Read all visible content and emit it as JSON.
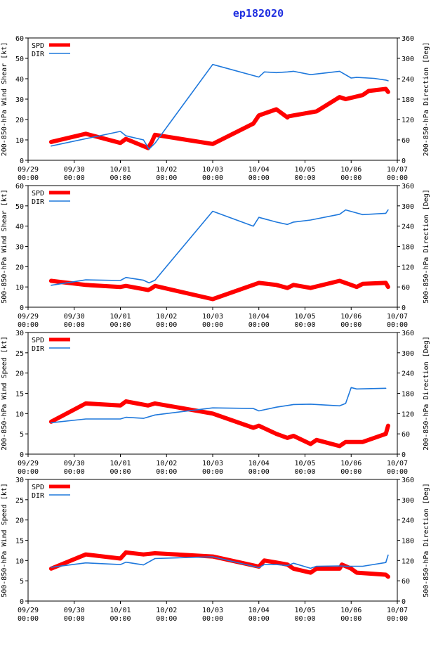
{
  "title": "ep182020",
  "colors": {
    "spd": "#ff0000",
    "dir": "#1e78dc",
    "title": "#1f2fe0"
  },
  "x_ticks": [
    {
      "date": "09/29",
      "time": "00:00",
      "t": 0
    },
    {
      "date": "09/30",
      "time": "00:00",
      "t": 1
    },
    {
      "date": "10/01",
      "time": "00:00",
      "t": 2
    },
    {
      "date": "10/02",
      "time": "00:00",
      "t": 3
    },
    {
      "date": "10/03",
      "time": "00:00",
      "t": 4
    },
    {
      "date": "10/04",
      "time": "00:00",
      "t": 5
    },
    {
      "date": "10/05",
      "time": "00:00",
      "t": 6
    },
    {
      "date": "10/06",
      "time": "00:00",
      "t": 7
    },
    {
      "date": "10/07",
      "time": "00:00",
      "t": 8
    }
  ],
  "chart_data": [
    {
      "type": "line",
      "ylabel_left": "200-850-hPa Wind Shear [kt]",
      "ylabel_right": "200-850-hPa Direction [Deg]",
      "ylim_left": [
        0,
        60
      ],
      "yticks_left": [
        0,
        10,
        20,
        30,
        40,
        50,
        60
      ],
      "ylim_right": [
        0,
        360
      ],
      "yticks_right": [
        0,
        60,
        120,
        180,
        240,
        300,
        360
      ],
      "xlim": [
        0,
        8
      ],
      "legend": [
        "SPD",
        "DIR"
      ],
      "series": [
        {
          "name": "SPD",
          "axis": "left",
          "x": [
            0.5,
            1.25,
            2.0,
            2.12,
            2.6,
            2.68,
            2.75,
            4.0,
            4.88,
            5.0,
            5.38,
            5.62,
            5.63,
            5.75,
            6.25,
            6.75,
            6.88,
            7.25,
            7.38,
            7.75,
            7.8
          ],
          "values": [
            9,
            13,
            8.5,
            10.5,
            6,
            9,
            12.5,
            8,
            18,
            22,
            25,
            21,
            21.5,
            22,
            24,
            31,
            30,
            32,
            34,
            35,
            33.5
          ]
        },
        {
          "name": "DIR",
          "axis": "right",
          "x": [
            0.5,
            2.0,
            2.12,
            2.5,
            2.62,
            2.75,
            4.0,
            5.0,
            5.12,
            5.38,
            5.62,
            5.75,
            6.12,
            6.75,
            7.0,
            7.12,
            7.5,
            7.75,
            7.8
          ],
          "values": [
            42,
            85,
            72,
            60,
            33,
            50,
            282,
            245,
            260,
            258,
            260,
            262,
            252,
            262,
            242,
            244,
            241,
            236,
            234
          ]
        }
      ]
    },
    {
      "type": "line",
      "ylabel_left": "500-850-hPa Wind Shear [kt]",
      "ylabel_right": "500-850-hPa Direction [Deg]",
      "ylim_left": [
        0,
        60
      ],
      "yticks_left": [
        0,
        10,
        20,
        30,
        40,
        50,
        60
      ],
      "ylim_right": [
        0,
        360
      ],
      "yticks_right": [
        0,
        60,
        120,
        180,
        240,
        300,
        360
      ],
      "xlim": [
        0,
        8
      ],
      "legend": [
        "SPD",
        "DIR"
      ],
      "series": [
        {
          "name": "SPD",
          "axis": "left",
          "x": [
            0.5,
            1.25,
            2.0,
            2.12,
            2.6,
            2.65,
            2.75,
            4.0,
            5.0,
            5.38,
            5.62,
            5.75,
            6.12,
            6.75,
            7.0,
            7.12,
            7.25,
            7.75,
            7.8
          ],
          "values": [
            13,
            11,
            10,
            10.5,
            8.5,
            9,
            10.5,
            4,
            12,
            11,
            9.5,
            11,
            9.5,
            13,
            11,
            10,
            11.5,
            12,
            10
          ]
        },
        {
          "name": "DIR",
          "axis": "right",
          "x": [
            0.5,
            1.25,
            2.0,
            2.12,
            2.5,
            2.62,
            2.75,
            4.0,
            4.88,
            5.0,
            5.38,
            5.62,
            5.75,
            6.12,
            6.75,
            6.88,
            7.25,
            7.75,
            7.8
          ],
          "values": [
            65,
            81,
            79,
            88,
            80,
            72,
            80,
            284,
            240,
            266,
            252,
            245,
            252,
            258,
            275,
            288,
            274,
            278,
            288
          ]
        }
      ]
    },
    {
      "type": "line",
      "ylabel_left": "200-850-hPa Wind Speed [kt]",
      "ylabel_right": "200-850-hPa Direction [Deg]",
      "ylim_left": [
        0,
        30
      ],
      "yticks_left": [
        0,
        5,
        10,
        15,
        20,
        25,
        30
      ],
      "ylim_right": [
        0,
        360
      ],
      "yticks_right": [
        0,
        60,
        120,
        180,
        240,
        300,
        360
      ],
      "xlim": [
        0,
        8
      ],
      "legend": [
        "SPD",
        "DIR"
      ],
      "series": [
        {
          "name": "SPD",
          "axis": "left",
          "x": [
            0.5,
            1.25,
            2.0,
            2.12,
            2.6,
            2.75,
            4.0,
            4.88,
            5.0,
            5.38,
            5.62,
            5.75,
            6.12,
            6.25,
            6.75,
            6.88,
            7.25,
            7.75,
            7.8
          ],
          "values": [
            8,
            12.5,
            12,
            13,
            12,
            12.5,
            10,
            6.5,
            7,
            5,
            4,
            4.5,
            2.5,
            3.5,
            2,
            3,
            3,
            5,
            7
          ]
        },
        {
          "name": "DIR",
          "axis": "right",
          "x": [
            0.5,
            1.25,
            2.0,
            2.12,
            2.5,
            2.75,
            4.0,
            4.88,
            5.0,
            5.38,
            5.62,
            5.75,
            6.12,
            6.75,
            6.88,
            7.0,
            7.12,
            7.75
          ],
          "values": [
            93,
            104,
            104,
            109,
            106,
            116,
            137,
            135,
            128,
            139,
            144,
            147,
            148,
            143,
            150,
            197,
            193,
            195
          ]
        }
      ]
    },
    {
      "type": "line",
      "ylabel_left": "500-850-hPa Wind Speed [kt]",
      "ylabel_right": "500-850-hPa Direction [Deg]",
      "ylim_left": [
        0,
        30
      ],
      "yticks_left": [
        0,
        5,
        10,
        15,
        20,
        25,
        30
      ],
      "ylim_right": [
        0,
        360
      ],
      "yticks_right": [
        0,
        60,
        120,
        180,
        240,
        300,
        360
      ],
      "xlim": [
        0,
        8
      ],
      "legend": [
        "SPD",
        "DIR"
      ],
      "series": [
        {
          "name": "SPD",
          "axis": "left",
          "x": [
            0.5,
            1.25,
            2.0,
            2.12,
            2.5,
            2.75,
            4.0,
            5.0,
            5.12,
            5.38,
            5.62,
            5.75,
            6.12,
            6.25,
            6.75,
            6.8,
            7.0,
            7.12,
            7.75,
            7.8
          ],
          "values": [
            8,
            11.5,
            10.5,
            12,
            11.5,
            11.8,
            11,
            8.5,
            10,
            9.5,
            9,
            8,
            7,
            8,
            8,
            9,
            8,
            7,
            6.5,
            6
          ]
        },
        {
          "name": "DIR",
          "axis": "right",
          "x": [
            0.5,
            1.25,
            2.0,
            2.12,
            2.5,
            2.75,
            4.0,
            5.0,
            5.12,
            5.38,
            5.62,
            5.75,
            6.12,
            6.25,
            6.75,
            6.88,
            7.25,
            7.75,
            7.8
          ],
          "values": [
            100,
            113,
            108,
            115,
            107,
            126,
            131,
            99,
            108,
            108,
            105,
            112,
            97,
            103,
            104,
            103,
            103,
            114,
            136
          ]
        }
      ]
    }
  ]
}
